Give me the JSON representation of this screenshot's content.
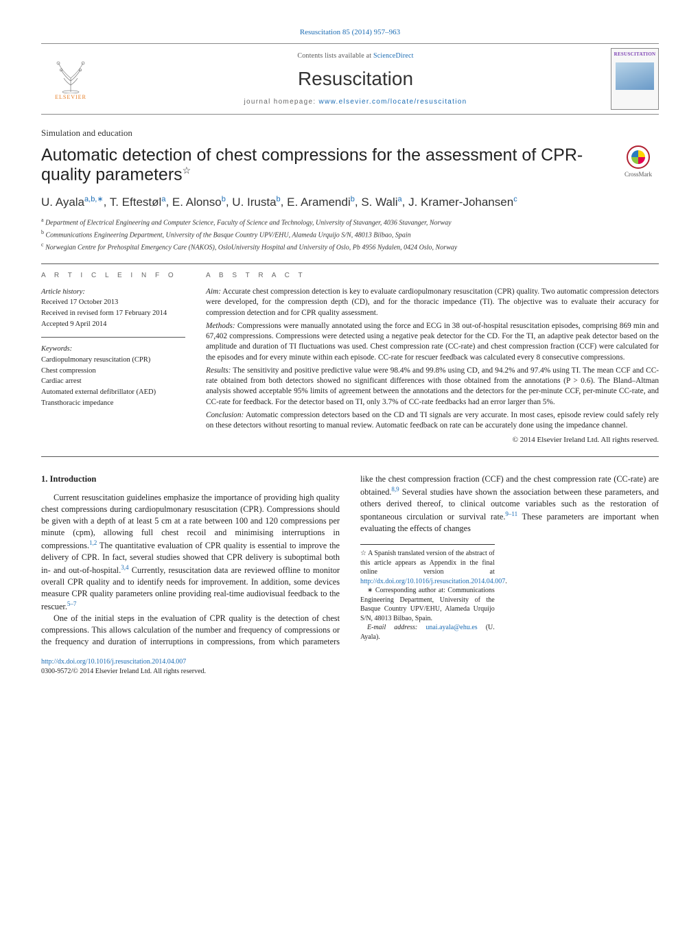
{
  "header": {
    "journal_ref": "Resuscitation 85 (2014) 957–963",
    "contents_line_prefix": "Contents lists available at ",
    "contents_line_link": "ScienceDirect",
    "journal_name": "Resuscitation",
    "homepage_prefix": "journal homepage: ",
    "homepage_link": "www.elsevier.com/locate/resuscitation",
    "elsevier_label": "ELSEVIER",
    "cover_title": "RESUSCITATION",
    "crossmark_label": "CrossMark"
  },
  "article": {
    "super_section": "Simulation and education",
    "title": "Automatic detection of chest compressions for the assessment of CPR-quality parameters",
    "title_star": "☆",
    "authors_html_parts": [
      {
        "name": "U. Ayala",
        "aff": "a,b,",
        "corr": "∗"
      },
      {
        "name": "T. Eftestøl",
        "aff": "a"
      },
      {
        "name": "E. Alonso",
        "aff": "b"
      },
      {
        "name": "U. Irusta",
        "aff": "b"
      },
      {
        "name": "E. Aramendi",
        "aff": "b"
      },
      {
        "name": "S. Wali",
        "aff": "a"
      },
      {
        "name": "J. Kramer-Johansen",
        "aff": "c"
      }
    ],
    "affiliations": [
      {
        "key": "a",
        "text": "Department of Electrical Engineering and Computer Science, Faculty of Science and Technology, University of Stavanger, 4036 Stavanger, Norway"
      },
      {
        "key": "b",
        "text": "Communications Engineering Department, University of the Basque Country UPV/EHU, Alameda Urquijo S/N, 48013 Bilbao, Spain"
      },
      {
        "key": "c",
        "text": "Norwegian Centre for Prehospital Emergency Care (NAKOS), OsloUniversity Hospital and University of Oslo, Pb 4956 Nydalen, 0424 Oslo, Norway"
      }
    ]
  },
  "info": {
    "heading": "a r t i c l e   i n f o",
    "history_label": "Article history:",
    "received": "Received 17 October 2013",
    "revised": "Received in revised form 17 February 2014",
    "accepted": "Accepted 9 April 2014",
    "keywords_label": "Keywords:",
    "keywords": [
      "Cardiopulmonary resuscitation (CPR)",
      "Chest compression",
      "Cardiac arrest",
      "Automated external defibrillator (AED)",
      "Transthoracic impedance"
    ]
  },
  "abstract": {
    "heading": "a b s t r a c t",
    "paras": [
      {
        "label": "Aim:",
        "text": "Accurate chest compression detection is key to evaluate cardiopulmonary resuscitation (CPR) quality. Two automatic compression detectors were developed, for the compression depth (CD), and for the thoracic impedance (TI). The objective was to evaluate their accuracy for compression detection and for CPR quality assessment."
      },
      {
        "label": "Methods:",
        "text": "Compressions were manually annotated using the force and ECG in 38 out-of-hospital resuscitation episodes, comprising 869 min and 67,402 compressions. Compressions were detected using a negative peak detector for the CD. For the TI, an adaptive peak detector based on the amplitude and duration of TI fluctuations was used. Chest compression rate (CC-rate) and chest compression fraction (CCF) were calculated for the episodes and for every minute within each episode. CC-rate for rescuer feedback was calculated every 8 consecutive compressions."
      },
      {
        "label": "Results:",
        "text": "The sensitivity and positive predictive value were 98.4% and 99.8% using CD, and 94.2% and 97.4% using TI. The mean CCF and CC-rate obtained from both detectors showed no significant differences with those obtained from the annotations (P > 0.6). The Bland–Altman analysis showed acceptable 95% limits of agreement between the annotations and the detectors for the per-minute CCF, per-minute CC-rate, and CC-rate for feedback. For the detector based on TI, only 3.7% of CC-rate feedbacks had an error larger than 5%."
      },
      {
        "label": "Conclusion:",
        "text": "Automatic compression detectors based on the CD and TI signals are very accurate. In most cases, episode review could safely rely on these detectors without resorting to manual review. Automatic feedback on rate can be accurately done using the impedance channel."
      }
    ],
    "copyright": "© 2014 Elsevier Ireland Ltd. All rights reserved."
  },
  "body": {
    "heading": "1.  Introduction",
    "p1_a": "Current resuscitation guidelines emphasize the importance of providing high quality chest compressions during cardiopulmonary resuscitation (CPR). Compressions should be given with a depth of at least 5 cm at a rate between 100 and 120 compressions per minute (cpm), allowing full chest recoil and minimising interruptions in compressions.",
    "p1_ref1": "1,2",
    "p1_b": " The quantitative evaluation of CPR quality is essential to improve the delivery of CPR. In fact,",
    "p2_a": "several studies showed that CPR delivery is suboptimal both in- and out-of-hospital.",
    "p2_ref1": "3,4",
    "p2_b": " Currently, resuscitation data are reviewed offline to monitor overall CPR quality and to identify needs for improvement. In addition, some devices measure CPR quality parameters online providing real-time audiovisual feedback to the rescuer.",
    "p2_ref2": "5–7",
    "p3_a": "One of the initial steps in the evaluation of CPR quality is the detection of chest compressions. This allows calculation of the number and frequency of compressions or the frequency and duration of interruptions in compressions, from which parameters like the chest compression fraction (CCF) and the chest compression rate (CC-rate) are obtained.",
    "p3_ref1": "8,9",
    "p3_b": " Several studies have shown the association between these parameters, and others derived thereof, to clinical outcome variables such as the restoration of spontaneous circulation or survival rate.",
    "p3_ref2": "9–11",
    "p3_c": " These parameters are important when evaluating the effects of changes"
  },
  "footnotes": {
    "star_a": "☆ A Spanish translated version of the abstract of this article appears as Appendix in the final online version at ",
    "star_link": "http://dx.doi.org/10.1016/j.resuscitation.2014.04.007",
    "star_b": ".",
    "corr_a": "∗ Corresponding author at: Communications Engineering Department, University of the Basque Country UPV/EHU, Alameda Urquijo S/N, 48013 Bilbao, Spain.",
    "email_label": "E-mail address: ",
    "email": "unai.ayala@ehu.es",
    "email_tail": " (U. Ayala).",
    "doi": "http://dx.doi.org/10.1016/j.resuscitation.2014.04.007",
    "issn_line": "0300-9572/© 2014 Elsevier Ireland Ltd. All rights reserved."
  },
  "colors": {
    "link": "#1a6bb3",
    "elsevier_orange": "#e67a1f",
    "rule": "#555555"
  }
}
